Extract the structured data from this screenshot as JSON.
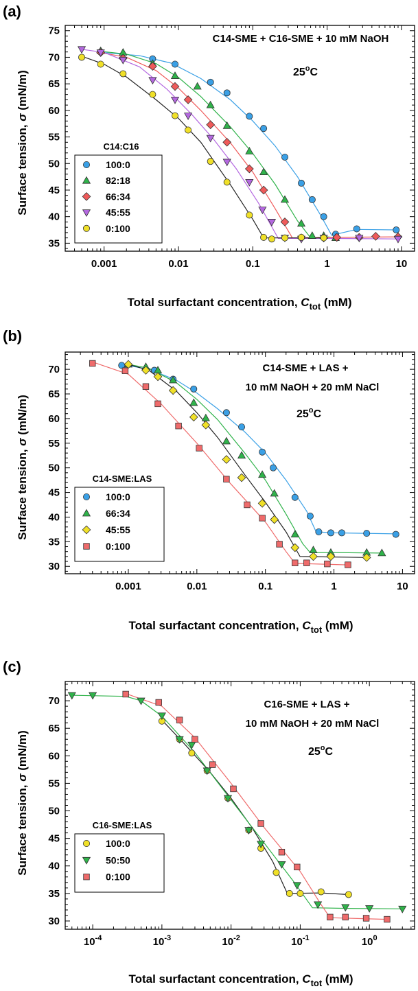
{
  "chart_data": [
    {
      "type": "scatter",
      "panel_label": "(a)",
      "title_lines": [
        "C14-SME + C16-SME + 10 mM NaOH"
      ],
      "temperature_label": "25",
      "temperature_unit": "C",
      "xlabel": "Total surfactant concentration, ",
      "xlabel_var": "C",
      "xlabel_sub": "tot",
      "xlabel_unit": " (mM)",
      "ylabel": "Surface tension, ",
      "ylabel_var": "σ",
      "ylabel_unit": " (mN/m)",
      "x_scale": "log",
      "xlim": [
        0.0003,
        15
      ],
      "ylim": [
        33.5,
        76
      ],
      "x_ticks": [
        0.001,
        0.01,
        0.1,
        1,
        10
      ],
      "x_tick_labels": [
        "0.001",
        "0.01",
        "0.1",
        "1",
        "10"
      ],
      "y_ticks": [
        35,
        40,
        45,
        50,
        55,
        60,
        65,
        70,
        75
      ],
      "legend_title": "C14:C16",
      "legend_position": "bottom-left",
      "series": [
        {
          "name": "100:0",
          "marker": "circle",
          "color": "#3aa0e6",
          "x": [
            0.0009,
            0.0045,
            0.009,
            0.027,
            0.045,
            0.09,
            0.14,
            0.27,
            0.45,
            0.63,
            0.9,
            1.3,
            2.5,
            8.5
          ],
          "y": [
            71.0,
            69.7,
            68.7,
            65.3,
            63.3,
            58.9,
            56.6,
            51.2,
            46.3,
            43.2,
            40.0,
            36.7,
            37.7,
            37.5
          ],
          "fit_x": [
            0.0008,
            0.003,
            0.008,
            0.02,
            0.05,
            0.1,
            0.2,
            0.4,
            0.8,
            1.15,
            2.5,
            8.5
          ],
          "fit_y": [
            71.0,
            70.3,
            68.9,
            66.0,
            62.0,
            58.0,
            53.3,
            47.5,
            40.5,
            36.5,
            37.6,
            37.5
          ]
        },
        {
          "name": "82:18",
          "marker": "triangle-up",
          "color": "#2fb34a",
          "x": [
            0.0009,
            0.0018,
            0.0045,
            0.009,
            0.018,
            0.027,
            0.045,
            0.09,
            0.14,
            0.27,
            0.45,
            0.63,
            0.9,
            1.3
          ],
          "y": [
            71.2,
            70.9,
            68.8,
            66.5,
            64.5,
            61.0,
            57.1,
            52.3,
            48.4,
            43.2,
            38.7,
            36.4,
            36.4,
            36.0
          ],
          "fit_x": [
            0.0008,
            0.002,
            0.005,
            0.01,
            0.02,
            0.05,
            0.1,
            0.2,
            0.4,
            0.6,
            1.0,
            1.4
          ],
          "fit_y": [
            71.2,
            70.6,
            68.8,
            66.2,
            62.6,
            56.9,
            51.9,
            46.1,
            39.2,
            36.0,
            36.2,
            36.0
          ]
        },
        {
          "name": "66:34",
          "marker": "diamond",
          "color": "#ef5a5a",
          "x": [
            0.0009,
            0.0018,
            0.0045,
            0.009,
            0.0135,
            0.027,
            0.045,
            0.09,
            0.14,
            0.27,
            0.45,
            0.9,
            1.35,
            2.7,
            4.5,
            9.0
          ],
          "y": [
            70.9,
            69.8,
            68.3,
            64.5,
            62.0,
            57.3,
            54.0,
            49.0,
            45.0,
            39.0,
            36.0,
            36.0,
            36.1,
            36.1,
            36.3,
            36.2
          ],
          "fit_x": [
            0.0008,
            0.002,
            0.005,
            0.01,
            0.02,
            0.05,
            0.1,
            0.2,
            0.34,
            1,
            9
          ],
          "fit_y": [
            71.0,
            70.0,
            67.5,
            64.2,
            60.0,
            53.9,
            48.4,
            41.5,
            36.0,
            36.1,
            36.2
          ]
        },
        {
          "name": "45:55",
          "marker": "triangle-down",
          "color": "#b468e0",
          "x": [
            0.0005,
            0.0009,
            0.0018,
            0.0045,
            0.009,
            0.0135,
            0.027,
            0.045,
            0.09,
            0.135,
            0.18,
            0.27,
            0.45,
            0.9,
            2.7,
            9.0
          ],
          "y": [
            71.5,
            70.9,
            69.5,
            65.7,
            62.0,
            59.0,
            54.8,
            50.3,
            46.5,
            41.3,
            39.0,
            36.0,
            35.8,
            36.0,
            36.0,
            35.8
          ],
          "fit_x": [
            0.0005,
            0.001,
            0.003,
            0.007,
            0.015,
            0.03,
            0.06,
            0.12,
            0.22,
            1,
            9
          ],
          "fit_y": [
            71.5,
            70.9,
            68.2,
            64.0,
            59.3,
            54.5,
            49.0,
            42.5,
            35.9,
            35.9,
            35.8
          ]
        },
        {
          "name": "0:100",
          "marker": "circle",
          "color": "#f0e028",
          "x": [
            0.0005,
            0.0009,
            0.0018,
            0.0045,
            0.009,
            0.0135,
            0.027,
            0.045,
            0.09,
            0.14,
            0.18,
            0.27,
            0.45,
            0.9
          ],
          "y": [
            70.0,
            68.7,
            66.9,
            63.0,
            59.0,
            56.3,
            50.4,
            46.5,
            40.3,
            36.1,
            35.8,
            36.0,
            36.1,
            36.0
          ],
          "fit_x": [
            0.0005,
            0.001,
            0.002,
            0.005,
            0.01,
            0.02,
            0.05,
            0.1,
            0.14,
            0.9
          ],
          "fit_y": [
            70.2,
            68.7,
            66.3,
            62.0,
            58.5,
            54.0,
            46.0,
            39.5,
            36.0,
            36.0
          ]
        }
      ]
    },
    {
      "type": "scatter",
      "panel_label": "(b)",
      "title_lines": [
        "C14-SME + LAS +",
        "10 mM NaOH + 20 mM NaCl"
      ],
      "temperature_label": "25",
      "temperature_unit": "C",
      "xlabel": "Total surfactant concentration, ",
      "xlabel_var": "C",
      "xlabel_sub": "tot",
      "xlabel_unit": " (mM)",
      "ylabel": "Surface tension, ",
      "ylabel_var": "σ",
      "ylabel_unit": " (mN/m)",
      "x_scale": "log",
      "xlim": [
        0.00012,
        15
      ],
      "ylim": [
        28.5,
        73.5
      ],
      "x_ticks": [
        0.001,
        0.01,
        0.1,
        1,
        10
      ],
      "x_tick_labels": [
        "0.001",
        "0.01",
        "0.1",
        "1",
        "10"
      ],
      "y_ticks": [
        30,
        35,
        40,
        45,
        50,
        55,
        60,
        65,
        70
      ],
      "legend_title": "C14-SME:LAS",
      "legend_position": "bottom-left",
      "series": [
        {
          "name": "100:0",
          "marker": "circle",
          "color": "#3aa0e6",
          "x": [
            0.0008,
            0.0024,
            0.0045,
            0.009,
            0.027,
            0.045,
            0.09,
            0.13,
            0.27,
            0.45,
            0.6,
            0.9,
            1.3,
            3.0,
            8.0
          ],
          "y": [
            70.8,
            69.8,
            68.0,
            66.0,
            61.2,
            58.3,
            53.2,
            50.0,
            44.0,
            40.2,
            37.0,
            36.8,
            36.8,
            36.7,
            36.5
          ],
          "fit_x": [
            0.0008,
            0.002,
            0.005,
            0.01,
            0.02,
            0.05,
            0.1,
            0.2,
            0.4,
            0.55,
            1,
            8
          ],
          "fit_y": [
            71.0,
            70.0,
            67.8,
            65.2,
            62.0,
            57.3,
            53.0,
            47.5,
            41.2,
            37.0,
            36.8,
            36.6
          ]
        },
        {
          "name": "66:34",
          "marker": "triangle-up",
          "color": "#2fb34a",
          "x": [
            0.001,
            0.0018,
            0.0027,
            0.0045,
            0.009,
            0.0135,
            0.027,
            0.045,
            0.09,
            0.135,
            0.27,
            0.5,
            0.9,
            3.0,
            5.0
          ],
          "y": [
            71.0,
            70.5,
            69.8,
            67.8,
            63.2,
            60.1,
            55.4,
            52.5,
            48.6,
            44.8,
            36.5,
            33.3,
            32.8,
            32.8,
            32.7
          ],
          "fit_x": [
            0.001,
            0.002,
            0.005,
            0.01,
            0.02,
            0.05,
            0.1,
            0.2,
            0.35,
            0.45,
            1,
            5
          ],
          "fit_y": [
            71.0,
            70.2,
            67.3,
            63.9,
            59.8,
            53.0,
            47.5,
            40.6,
            34.6,
            32.8,
            32.8,
            32.7
          ]
        },
        {
          "name": "45:55",
          "marker": "diamond",
          "color": "#f0e028",
          "x": [
            0.001,
            0.0018,
            0.0027,
            0.0045,
            0.009,
            0.0135,
            0.027,
            0.045,
            0.09,
            0.135,
            0.27,
            0.5,
            0.9,
            3.0
          ],
          "y": [
            71.0,
            69.8,
            68.5,
            65.7,
            60.3,
            58.7,
            51.7,
            48.0,
            42.8,
            39.5,
            33.8,
            32.0,
            32.0,
            31.8
          ],
          "fit_x": [
            0.001,
            0.002,
            0.005,
            0.01,
            0.02,
            0.05,
            0.1,
            0.2,
            0.32,
            1,
            3
          ],
          "fit_y": [
            71.0,
            69.8,
            65.6,
            61.2,
            56.2,
            48.6,
            43.0,
            37.0,
            32.0,
            31.9,
            31.8
          ]
        },
        {
          "name": "0:100",
          "marker": "square",
          "color": "#ef6b6b",
          "x": [
            0.0003,
            0.0009,
            0.0018,
            0.0027,
            0.0054,
            0.0108,
            0.027,
            0.054,
            0.09,
            0.16,
            0.27,
            0.4,
            0.8,
            1.6
          ],
          "y": [
            71.2,
            69.7,
            66.5,
            63.0,
            58.5,
            54.0,
            47.7,
            42.5,
            39.8,
            34.5,
            30.7,
            30.7,
            30.5,
            30.3
          ],
          "fit_x": [
            0.0003,
            0.001,
            0.003,
            0.01,
            0.03,
            0.1,
            0.2,
            0.27,
            1.6
          ],
          "fit_y": [
            71.5,
            69.0,
            63.0,
            55.0,
            47.0,
            39.0,
            33.0,
            30.6,
            30.3
          ]
        }
      ]
    },
    {
      "type": "scatter",
      "panel_label": "(c)",
      "title_lines": [
        "C16-SME + LAS +",
        "10 mM NaOH + 20 mM NaCl"
      ],
      "temperature_label": "25",
      "temperature_unit": "C",
      "xlabel": "Total surfactant concentration, ",
      "xlabel_var": "C",
      "xlabel_sub": "tot",
      "xlabel_unit": " (mM)",
      "ylabel": "Surface tension, ",
      "ylabel_var": "σ",
      "ylabel_unit": " (mN/m)",
      "x_scale": "log",
      "xlim": [
        4e-05,
        4.5
      ],
      "ylim": [
        28.5,
        73.5
      ],
      "x_ticks": [
        0.0001,
        0.001,
        0.01,
        0.1,
        1
      ],
      "x_tick_labels": [
        {
          "base": "10",
          "exp": "-4"
        },
        {
          "base": "10",
          "exp": "-3"
        },
        {
          "base": "10",
          "exp": "-2"
        },
        {
          "base": "10",
          "exp": "-1"
        },
        {
          "base": "10",
          "exp": "0"
        }
      ],
      "y_ticks": [
        30,
        35,
        40,
        45,
        50,
        55,
        60,
        65,
        70
      ],
      "legend_title": "C16-SME:LAS",
      "legend_position": "bottom-left",
      "series": [
        {
          "name": "100:0",
          "marker": "circle",
          "color": "#f0e028",
          "x": [
            0.001,
            0.0018,
            0.0027,
            0.0045,
            0.009,
            0.018,
            0.027,
            0.045,
            0.07,
            0.1,
            0.2,
            0.5
          ],
          "y": [
            66.3,
            63.0,
            60.5,
            57.3,
            52.3,
            46.5,
            43.2,
            38.8,
            35.0,
            35.0,
            35.3,
            34.8
          ],
          "fit_x": [
            0.001,
            0.002,
            0.005,
            0.01,
            0.02,
            0.04,
            0.065,
            0.2,
            0.5
          ],
          "fit_y": [
            66.5,
            62.5,
            57.0,
            52.3,
            47.0,
            40.8,
            35.0,
            35.1,
            34.8
          ]
        },
        {
          "name": "50:50",
          "marker": "triangle-down",
          "color": "#2fb34a",
          "x": [
            5e-05,
            0.0001,
            0.0005,
            0.001,
            0.0018,
            0.0027,
            0.0045,
            0.009,
            0.018,
            0.027,
            0.054,
            0.09,
            0.18,
            0.45,
            1.0,
            3.0
          ],
          "y": [
            71.0,
            71.0,
            70.0,
            67.3,
            63.0,
            62.0,
            57.3,
            52.3,
            46.5,
            44.0,
            40.3,
            36.5,
            33.0,
            32.5,
            32.3,
            32.2
          ],
          "fit_x": [
            5e-05,
            0.0003,
            0.0005,
            0.001,
            0.003,
            0.01,
            0.03,
            0.08,
            0.15,
            0.4,
            3.0
          ],
          "fit_y": [
            71.0,
            70.8,
            70.0,
            67.2,
            60.6,
            52.0,
            44.2,
            37.2,
            32.4,
            32.3,
            32.2
          ]
        },
        {
          "name": "0:100",
          "marker": "square",
          "color": "#ef6b6b",
          "x": [
            0.0003,
            0.0009,
            0.0018,
            0.003,
            0.0054,
            0.0108,
            0.027,
            0.054,
            0.09,
            0.27,
            0.45,
            0.9,
            1.8
          ],
          "y": [
            71.2,
            69.7,
            66.5,
            63.0,
            58.4,
            54.0,
            47.7,
            42.5,
            39.8,
            30.7,
            30.7,
            30.5,
            30.3
          ],
          "fit_x": [
            0.0003,
            0.001,
            0.003,
            0.01,
            0.03,
            0.1,
            0.2,
            0.27,
            1.8
          ],
          "fit_y": [
            71.3,
            69.0,
            63.3,
            55.0,
            47.0,
            39.0,
            33.0,
            30.6,
            30.3
          ]
        }
      ]
    }
  ]
}
